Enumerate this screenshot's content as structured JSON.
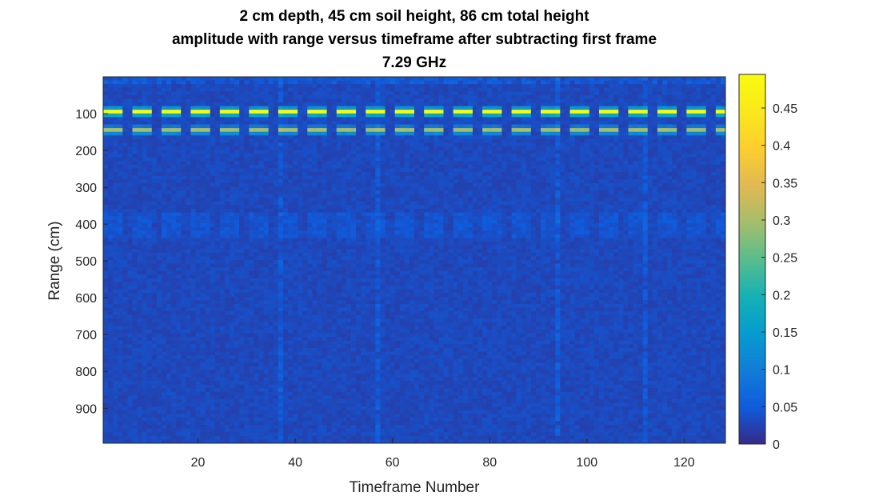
{
  "chart_data": {
    "type": "heatmap",
    "title_lines": [
      "2 cm depth, 45 cm soil height, 86 cm total height",
      "amplitude with range versus timeframe after subtracting first frame",
      "7.29 GHz"
    ],
    "xlabel": "Timeframe Number",
    "ylabel": "Range (cm)",
    "xlim": [
      0.5,
      128.5
    ],
    "ylim": [
      0,
      995
    ],
    "y_reversed": true,
    "x_ticks": [
      20,
      40,
      60,
      80,
      100,
      120
    ],
    "y_ticks": [
      100,
      200,
      300,
      400,
      500,
      600,
      700,
      800,
      900
    ],
    "colormap": "parula",
    "color_limits": [
      0,
      0.495
    ],
    "colorbar_ticks": [
      0,
      0.05,
      0.1,
      0.15,
      0.2,
      0.25,
      0.3,
      0.35,
      0.4,
      0.45
    ],
    "colorbar_tick_labels": [
      "0",
      "0.05",
      "0.1",
      "0.15",
      "0.2",
      "0.25",
      "0.3",
      "0.35",
      "0.4",
      "0.45"
    ],
    "timeframes": 128,
    "range_bins": 100,
    "background_amplitude": 0.03,
    "peak_period_frames": 6,
    "peak_width_frames": 4,
    "peak_bands": [
      {
        "range_cm": 95,
        "amplitude": 0.47
      },
      {
        "range_cm": 145,
        "amplitude": 0.27
      }
    ],
    "bright_columns": [
      37,
      57,
      94,
      112
    ],
    "grid": false
  }
}
